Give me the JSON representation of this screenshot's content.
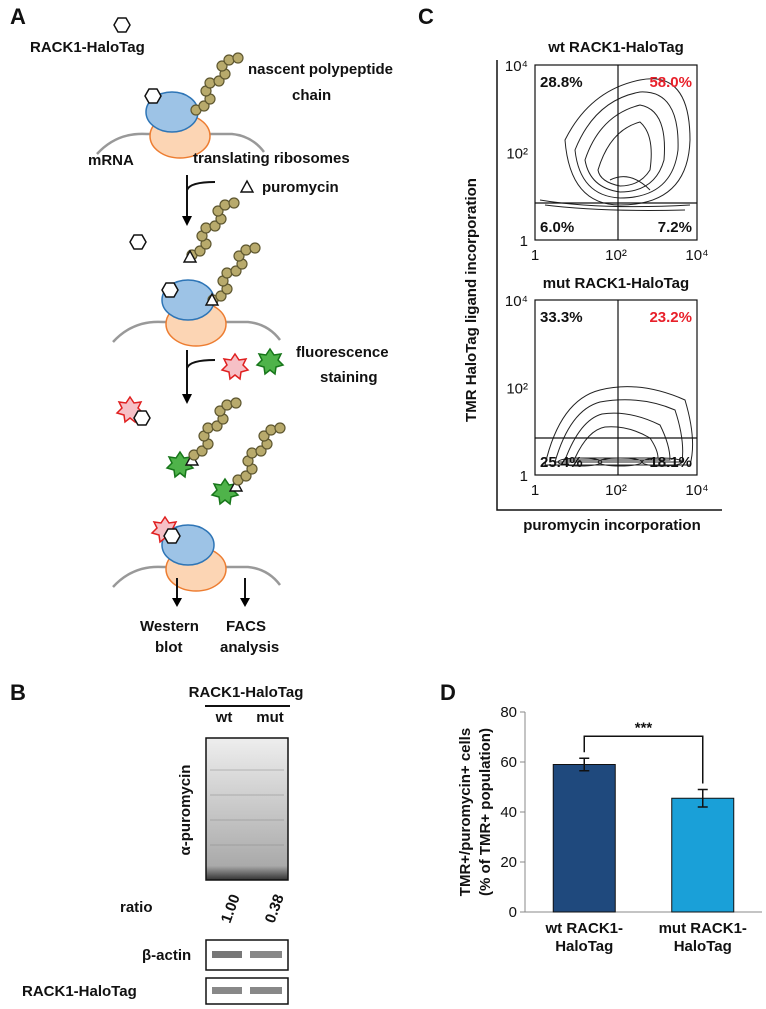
{
  "panels": {
    "a": "A",
    "b": "B",
    "c": "C",
    "d": "D"
  },
  "schematic": {
    "halotag": "RACK1-HaloTag",
    "nascent": [
      "nascent polypeptide",
      "chain"
    ],
    "mrna": "mRNA",
    "ribosomes": "translating ribosomes",
    "puromycin": "puromycin",
    "staining": [
      "fluorescence",
      "staining"
    ],
    "western": [
      "Western",
      "blot"
    ],
    "facs": [
      "FACS",
      "analysis"
    ]
  },
  "blot": {
    "title": "RACK1-HaloTag",
    "lanes": [
      "wt",
      "mut"
    ],
    "antibody": "α-puromycin",
    "ratio_label": "ratio",
    "ratios": [
      "1.00",
      "0.38"
    ],
    "actin": "β-actin",
    "halotag": "RACK1-HaloTag"
  },
  "facs": {
    "y_label": "TMR HaloTag ligand incorporation",
    "x_label": "puromycin incorporation",
    "ticks": [
      "1",
      "10²",
      "10⁴"
    ],
    "plots": [
      {
        "title": "wt RACK1-HaloTag",
        "quadrants": [
          "28.8%",
          "58.0%",
          "6.0%",
          "7.2%"
        ]
      },
      {
        "title": "mut RACK1-HaloTag",
        "quadrants": [
          "33.3%",
          "23.2%",
          "25.4%",
          "18.1%"
        ]
      }
    ]
  },
  "chart_data": {
    "type": "bar",
    "y_label": [
      "TMR+/puromycin+ cells",
      "(% of TMR+ population)"
    ],
    "categories": [
      "wt RACK1-HaloTag",
      "mut RACK1-HaloTag"
    ],
    "values": [
      59,
      45.5
    ],
    "errors": [
      2.5,
      3.5
    ],
    "colors": [
      "#1f497d",
      "#1aa0d8"
    ],
    "ylim": [
      0,
      80
    ],
    "yticks": [
      0,
      20,
      40,
      60,
      80
    ],
    "annotation": "***"
  }
}
